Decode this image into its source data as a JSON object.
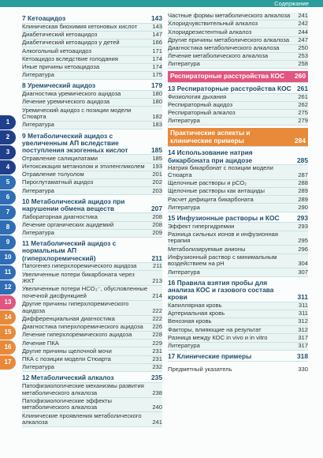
{
  "header": {
    "title": "Содержание"
  },
  "tabs": [
    "1",
    "2",
    "3",
    "4",
    "5",
    "6",
    "7",
    "8",
    "9",
    "10",
    "11",
    "12",
    "13",
    "14",
    "15",
    "16",
    "17"
  ],
  "columns": [
    [
      {
        "heading": "7 Кетоацидоз",
        "page": 143
      },
      {
        "entry": "Клиническая биохимия кетоновых кислот",
        "page": 143
      },
      {
        "entry": "Диабетический кетоацидоз",
        "page": 147
      },
      {
        "entry": "Диабетический кетоацидоз у детей",
        "page": 166
      },
      {
        "entry": "Алкогольный кетоацидоз",
        "page": 171
      },
      {
        "entry": "Кетоацидоз вследствие голодания",
        "page": 174
      },
      {
        "entry": "Иные причины кетоацидоза",
        "page": 174
      },
      {
        "entry": "Литература",
        "page": 175
      },
      {
        "heading": "8 Уремический ацидоз",
        "page": 179
      },
      {
        "entry": "Диагностика уремического ацидоза",
        "page": 180
      },
      {
        "entry": "Лечение уремического ацидоза",
        "page": 180
      },
      {
        "entry": "Уремический ацидоз с позиции модели Стюарта",
        "page": 182
      },
      {
        "entry": "Литература",
        "page": 183
      },
      {
        "heading": "9 Метаболический ацидоз с увеличенным АП вследствие поступления экзогенных кислот",
        "page": 185
      },
      {
        "entry": "Отравление салицилатами",
        "page": 185
      },
      {
        "entry": "Интоксикация метанолом и этиленгликолем",
        "page": 193
      },
      {
        "entry": "Отравление толуолом",
        "page": 201
      },
      {
        "entry": "Пироглутаматный ацидоз",
        "page": 202
      },
      {
        "entry": "Литература",
        "page": 203
      },
      {
        "heading": "10 Метаболический ацидоз при нарушении обмена веществ",
        "page": 207
      },
      {
        "entry": "Лабораторная диагностика",
        "page": 208
      },
      {
        "entry": "Лечение органических ацидемий",
        "page": 208
      },
      {
        "entry": "Литература",
        "page": 209
      },
      {
        "heading": "11 Метаболический ацидоз с нормальным АП (гиперхлоремический)",
        "page": 211
      },
      {
        "entry": "Патогенез гиперхлоремического ацидоза",
        "page": 211
      },
      {
        "entry": "Увеличенные потери бикарбоната через ЖКТ",
        "page": 213
      },
      {
        "entry": "Увеличенные потери HCO₃⁻, обусловленные почечной дисфункцией",
        "page": 214
      },
      {
        "entry": "Другие причины гиперхлоремического ацидоза",
        "page": 222
      },
      {
        "entry": "Дифференциальная диагностика",
        "page": 222
      },
      {
        "entry": "Диагностика гиперхлоремического ацидоза",
        "page": 226
      },
      {
        "entry": "Лечение гиперхлоремического ацидоза",
        "page": 228
      },
      {
        "entry": "Лечение ПКА",
        "page": 229
      },
      {
        "entry": "Другие причины щелочной мочи",
        "page": 231
      },
      {
        "entry": "ПКА с позиции модели Стюарта",
        "page": 231
      },
      {
        "entry": "Литература",
        "page": 232
      },
      {
        "heading": "12 Метаболический алкалоз",
        "page": 235
      },
      {
        "entry": "Патофизиологические механизмы развития метаболического алкалоза",
        "page": 238
      },
      {
        "entry": "Патофизиологические эффекты метаболического алкалоза",
        "page": 240
      },
      {
        "entry": "Клинические проявления метаболического алкалоза",
        "page": 241
      }
    ],
    [
      {
        "entry": "Частные формы метаболического алкалоза",
        "page": 241
      },
      {
        "entry": "Хлоридчувствительный алкалоз",
        "page": 242
      },
      {
        "entry": "Хлоридрезистентный алкалоз",
        "page": 244
      },
      {
        "entry": "Другие причины метаболического алкалоза",
        "page": 247
      },
      {
        "entry": "Диагностика метаболического алкалоза",
        "page": 250
      },
      {
        "entry": "Лечение метаболического алкалоза",
        "page": 253
      },
      {
        "entry": "Литература",
        "page": 258
      },
      {
        "part": "Респираторные расстройства КОС",
        "page": 260,
        "color": "#e2557f"
      },
      {
        "heading": "13 Респираторные расстройства КОС",
        "page": 261
      },
      {
        "entry": "Физиология дыхания",
        "page": 261
      },
      {
        "entry": "Респираторный ацидоз",
        "page": 262
      },
      {
        "entry": "Респираторный алкалоз",
        "page": 275
      },
      {
        "entry": "Литература",
        "page": 279
      },
      {
        "part": "Практические аспекты и клинические примеры",
        "page": 284,
        "color": "#e88a3a"
      },
      {
        "heading": "14 Использование натрия бикарбоната при ацидозе",
        "page": 285
      },
      {
        "entry": "Натрия бикарбонат с позиции модели Стюарта",
        "page": 287
      },
      {
        "entry": "Щелочные растворы и pCO₂",
        "page": 288
      },
      {
        "entry": "Щелочные растворы как антациды",
        "page": 289
      },
      {
        "entry": "Расчет дефицита бикарбоната",
        "page": 289
      },
      {
        "entry": "Литература",
        "page": 290
      },
      {
        "heading": "15 Инфузионные растворы и КОС",
        "page": 293
      },
      {
        "entry": "Эффект гипергидремии",
        "page": 293
      },
      {
        "entry": "Разница сильных ионов и инфузионная терапия",
        "page": 295
      },
      {
        "entry": "Метаболизируемые анионы",
        "page": 296
      },
      {
        "entry": "Инфузионный раствор с минимальным воздействием на pH",
        "page": 304
      },
      {
        "entry": "Литература",
        "page": 307
      },
      {
        "heading": "16 Правила взятия пробы для анализа КОС и газового состава крови",
        "page": 311
      },
      {
        "entry": "Капиллярная кровь",
        "page": 311
      },
      {
        "entry": "Артериальная кровь",
        "page": 311
      },
      {
        "entry": "Венозная кровь",
        "page": 312
      },
      {
        "entry": "Факторы, влияющие на результат",
        "page": 312
      },
      {
        "entry": "Разница между КОС in vivo и in vitro",
        "page": 317
      },
      {
        "entry": "Литература",
        "page": 317
      },
      {
        "heading": "17 Клинические примеры",
        "page": 318
      },
      {
        "index": "Предметный указатель",
        "page": 330
      }
    ]
  ]
}
